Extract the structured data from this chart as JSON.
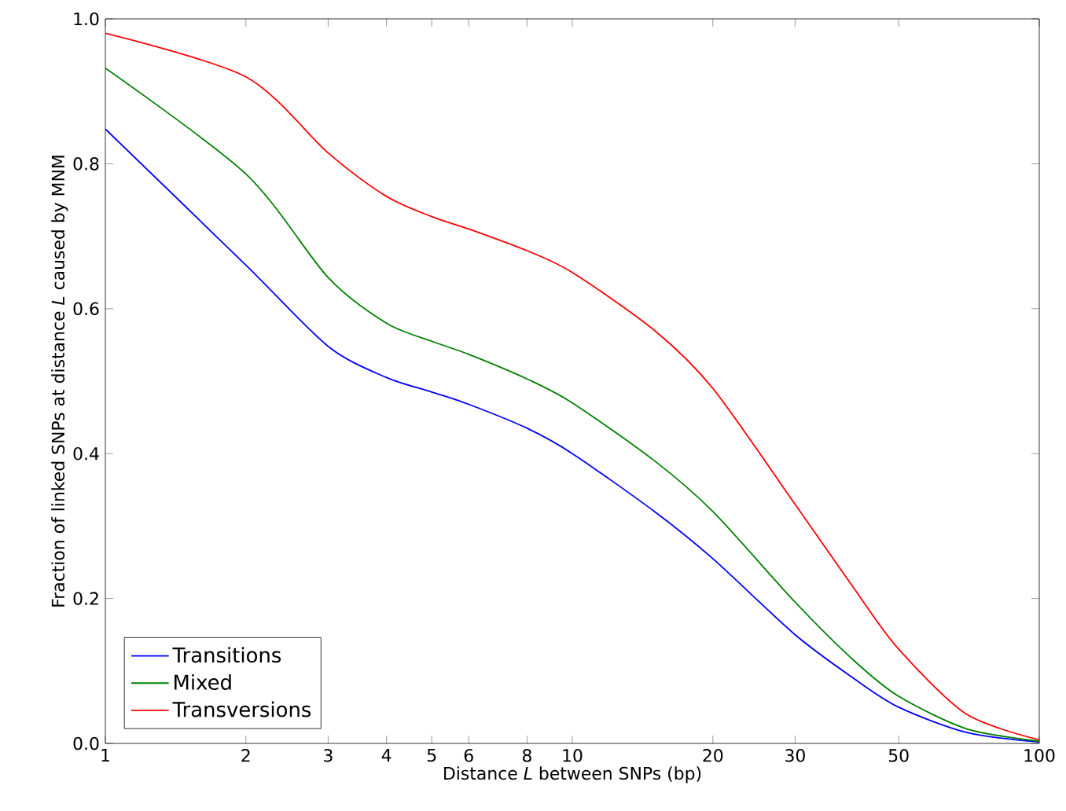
{
  "chart_data": {
    "type": "line",
    "xlabel": "Distance *L* between SNPs (bp)",
    "ylabel": "Fraction of linked SNPs at distance *L* caused by MNM",
    "log": "x",
    "xlim": [
      1,
      100
    ],
    "ylim": [
      0,
      1
    ],
    "xticks": [
      1,
      2,
      3,
      4,
      5,
      6,
      8,
      10,
      20,
      30,
      50,
      100
    ],
    "yticks": [
      {
        "value": 0,
        "label": "0.0"
      },
      {
        "value": 0.2,
        "label": "0.2"
      },
      {
        "value": 0.4,
        "label": "0.4"
      },
      {
        "value": 0.6,
        "label": "0.6"
      },
      {
        "value": 0.8,
        "label": "0.8"
      },
      {
        "value": 1,
        "label": "1.0"
      }
    ],
    "grid": false,
    "legend": "bottom left",
    "marker": "none",
    "line_style": "solid",
    "x": [
      1,
      2,
      3,
      4,
      5,
      6,
      8,
      10,
      15,
      20,
      30,
      40,
      50,
      70,
      100
    ],
    "series": [
      {
        "name": "Transitions",
        "color": "#0000ff",
        "values": [
          0.848,
          0.66,
          0.548,
          0.505,
          0.485,
          0.468,
          0.435,
          0.4,
          0.32,
          0.255,
          0.15,
          0.09,
          0.05,
          0.015,
          0.002
        ]
      },
      {
        "name": "Mixed",
        "color": "#008000",
        "values": [
          0.932,
          0.786,
          0.643,
          0.58,
          0.555,
          0.537,
          0.503,
          0.47,
          0.39,
          0.32,
          0.195,
          0.115,
          0.065,
          0.02,
          0.003
        ]
      },
      {
        "name": "Transversions",
        "color": "#ff0000",
        "values": [
          0.98,
          0.92,
          0.815,
          0.755,
          0.727,
          0.71,
          0.68,
          0.65,
          0.57,
          0.49,
          0.33,
          0.215,
          0.13,
          0.04,
          0.005
        ]
      }
    ]
  }
}
